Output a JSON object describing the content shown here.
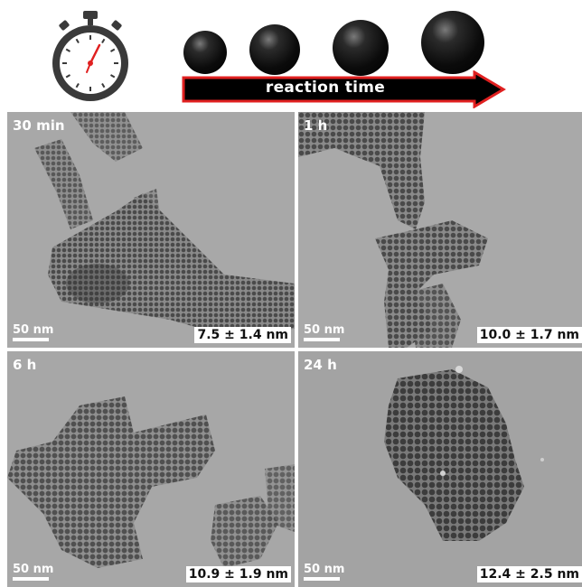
{
  "header": {
    "icon": "stopwatch-icon",
    "arrow_label": "reaction time",
    "arrow_border_color": "#e02020",
    "sphere_count": 4
  },
  "panels": [
    {
      "time": "30 min",
      "scale": "50 nm",
      "size": "7.5 ± 1.4 nm"
    },
    {
      "time": "1 h",
      "scale": "50 nm",
      "size": "10.0 ± 1.7 nm"
    },
    {
      "time": "6 h",
      "scale": "50 nm",
      "size": "10.9 ± 1.9 nm"
    },
    {
      "time": "24 h",
      "scale": "50 nm",
      "size": "12.4 ± 2.5 nm"
    }
  ]
}
